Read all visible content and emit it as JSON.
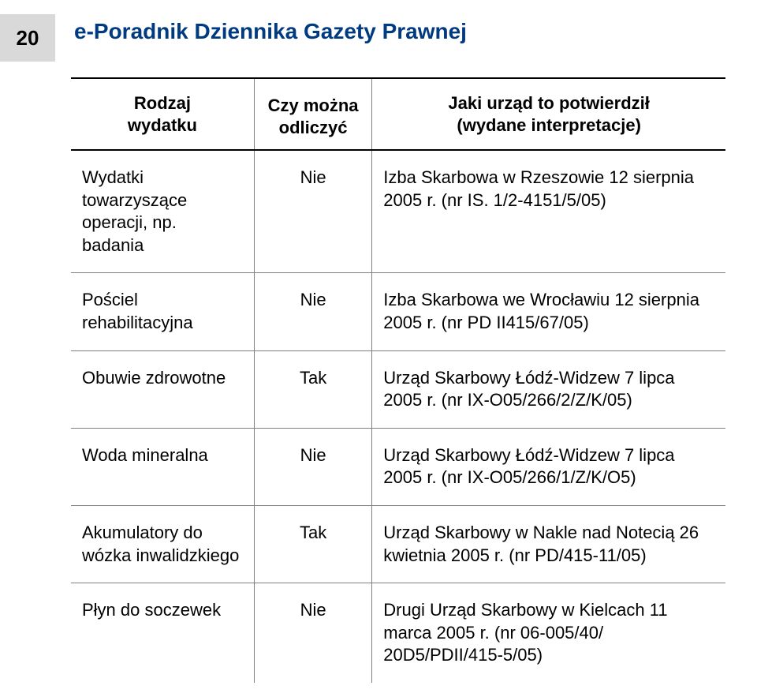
{
  "page_number": "20",
  "doc_title": "e-Poradnik Dziennika Gazety Prawnej",
  "colors": {
    "title_color": "#003a80",
    "page_num_bg": "#d9d9d9",
    "border_gray": "#808080",
    "border_black": "#000000",
    "text": "#000000",
    "background": "#ffffff"
  },
  "table": {
    "columns": [
      {
        "label_line1": "Rodzaj",
        "label_line2": "wydatku",
        "width_pct": 28,
        "align": "left"
      },
      {
        "label_line1": "Czy można",
        "label_line2": "odliczyć",
        "width_pct": 18,
        "align": "center"
      },
      {
        "label_line1": "Jaki urząd to potwierdził",
        "label_line2": "(wydane interpretacje)",
        "width_pct": 54,
        "align": "left"
      }
    ],
    "rows": [
      {
        "c1": "Wydatki towarzyszące operacji, np. badania",
        "c2": "Nie",
        "c3": "Izba Skarbowa w Rzeszowie 12 sierpnia 2005 r. (nr IS. 1/2-4151/5/05)"
      },
      {
        "c1": "Pościel rehabilitacyjna",
        "c2": "Nie",
        "c3": "Izba Skarbowa we Wrocławiu 12 sierpnia 2005 r. (nr PD II415/67/05)"
      },
      {
        "c1": "Obuwie zdrowotne",
        "c2": "Tak",
        "c3": "Urząd Skarbowy Łódź-Widzew 7 lipca 2005 r. (nr IX-O05/266/2/Z/K/05)"
      },
      {
        "c1": "Woda mineralna",
        "c2": "Nie",
        "c3": "Urząd Skarbowy Łódź-Widzew 7 lipca 2005 r. (nr IX-O05/266/1/Z/K/O5)"
      },
      {
        "c1": "Akumulatory do wózka inwalidzkiego",
        "c2": "Tak",
        "c3": "Urząd Skarbowy w Nakle nad Notecią 26 kwietnia 2005 r. (nr PD/415-11/05)"
      },
      {
        "c1": "Płyn do soczewek",
        "c2": "Nie",
        "c3": "Drugi Urząd Skarbowy w Kielcach 11 marca 2005 r. (nr 06-005/40/ 20D5/PDII/415-5/05)"
      }
    ]
  }
}
